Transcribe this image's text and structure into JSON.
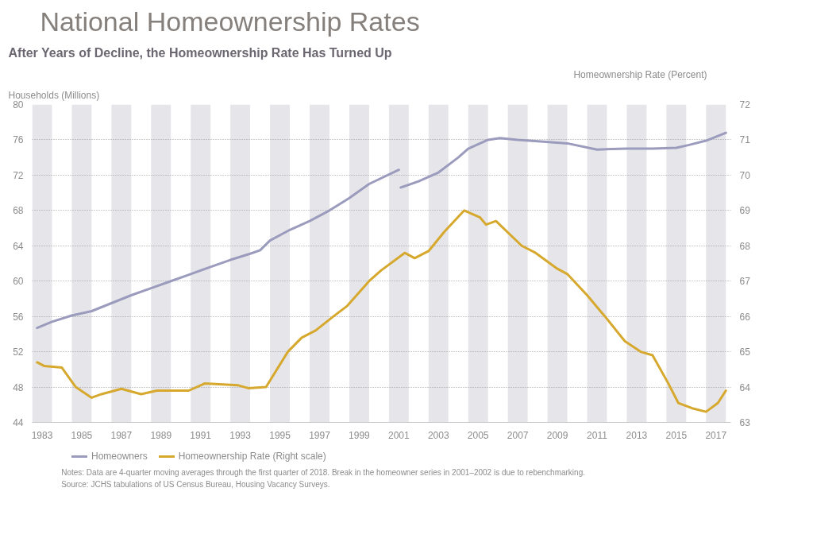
{
  "chart_data": {
    "type": "line",
    "title": "National Homeownership Rates",
    "subtitle": "After Years of Decline, the Homeownership Rate Has Turned Up",
    "ylabel": "Households (Millions)",
    "y2label": "Homeownership Rate (Percent)",
    "xlim": [
      1983,
      2018.25
    ],
    "xticks": [
      {
        "value": 1983.5,
        "label": "1983"
      },
      {
        "value": 1985.5,
        "label": "1985"
      },
      {
        "value": 1987.5,
        "label": "1987"
      },
      {
        "value": 1989.5,
        "label": "1989"
      },
      {
        "value": 1991.5,
        "label": "1991"
      },
      {
        "value": 1993.5,
        "label": "1993"
      },
      {
        "value": 1995.5,
        "label": "1995"
      },
      {
        "value": 1997.5,
        "label": "1997"
      },
      {
        "value": 1999.5,
        "label": "1999"
      },
      {
        "value": 2001.5,
        "label": "2001"
      },
      {
        "value": 2003.5,
        "label": "2003"
      },
      {
        "value": 2005.5,
        "label": "2005"
      },
      {
        "value": 2007.5,
        "label": "2007"
      },
      {
        "value": 2009.5,
        "label": "2009"
      },
      {
        "value": 2011.5,
        "label": "2011"
      },
      {
        "value": 2013.5,
        "label": "2013"
      },
      {
        "value": 2015.5,
        "label": "2015"
      },
      {
        "value": 2017.5,
        "label": "2017"
      }
    ],
    "ylim": [
      44,
      80
    ],
    "yticks": [
      44,
      48,
      52,
      56,
      60,
      64,
      68,
      72,
      76,
      80
    ],
    "y2lim": [
      63,
      72
    ],
    "y2ticks": [
      63,
      64,
      65,
      66,
      67,
      68,
      69,
      70,
      71,
      72
    ],
    "series": [
      {
        "name": "Homeowners",
        "color": "#9b9bbd",
        "x": [
          1983.25,
          1984,
          1985,
          1986,
          1987,
          1988,
          1989,
          1990,
          1991,
          1992,
          1993,
          1994,
          1994.5,
          1995,
          1996,
          1997,
          1998,
          1999,
          2000,
          2001.5,
          2001.55,
          2001.6,
          2002.5,
          2003.5,
          2004.5,
          2005,
          2006,
          2006.6,
          2007.5,
          2008.8,
          2010,
          2011.5,
          2013,
          2014.3,
          2015.5,
          2016.1,
          2017,
          2018
        ],
        "values": [
          54.7,
          55.4,
          56.1,
          56.6,
          57.5,
          58.4,
          59.2,
          60.0,
          60.8,
          61.6,
          62.4,
          63.1,
          63.5,
          64.6,
          65.8,
          66.8,
          68.0,
          69.4,
          71.0,
          72.6,
          null,
          70.6,
          71.3,
          72.3,
          74.0,
          75.0,
          76.0,
          76.2,
          76.0,
          75.8,
          75.6,
          74.9,
          75.0,
          75.0,
          75.1,
          75.4,
          75.9,
          76.8
        ]
      },
      {
        "name": "Homeownership Rate (Right scale)",
        "color": "#d6a92e",
        "axis": "y2",
        "x": [
          1983.25,
          1983.6,
          1984.5,
          1985.2,
          1986,
          1986.5,
          1987.5,
          1988.5,
          1989.3,
          1990.9,
          1991.7,
          1993.4,
          1993.9,
          1994.8,
          1995.9,
          1996.6,
          1997.3,
          1998.2,
          1998.9,
          2000,
          2000.6,
          2001.8,
          2002.3,
          2003,
          2003.8,
          2004.8,
          2005.6,
          2005.9,
          2006.4,
          2007.7,
          2008.4,
          2009.5,
          2010,
          2011,
          2011.9,
          2012.9,
          2013.7,
          2014.3,
          2015.1,
          2015.6,
          2016.3,
          2017,
          2017.6,
          2018
        ],
        "values": [
          64.7,
          64.6,
          64.55,
          64.0,
          63.7,
          63.8,
          63.95,
          63.8,
          63.9,
          63.9,
          64.1,
          64.05,
          63.97,
          64.0,
          65.0,
          65.4,
          65.6,
          66.0,
          66.3,
          67.0,
          67.3,
          67.8,
          67.65,
          67.85,
          68.4,
          69.0,
          68.8,
          68.6,
          68.7,
          68.0,
          67.8,
          67.35,
          67.2,
          66.6,
          66.0,
          65.3,
          65.0,
          64.9,
          64.1,
          63.55,
          63.4,
          63.3,
          63.55,
          63.9
        ]
      }
    ],
    "bands": [
      {
        "axis": "x",
        "from": 1983,
        "to": 1984,
        "color": "#e6e6ea"
      },
      {
        "axis": "x",
        "from": 1985,
        "to": 1986,
        "color": "#e6e6ea"
      },
      {
        "axis": "x",
        "from": 1987,
        "to": 1988,
        "color": "#e6e6ea"
      },
      {
        "axis": "x",
        "from": 1989,
        "to": 1990,
        "color": "#e6e6ea"
      },
      {
        "axis": "x",
        "from": 1991,
        "to": 1992,
        "color": "#e6e6ea"
      },
      {
        "axis": "x",
        "from": 1993,
        "to": 1994,
        "color": "#e6e6ea"
      },
      {
        "axis": "x",
        "from": 1995,
        "to": 1996,
        "color": "#e6e6ea"
      },
      {
        "axis": "x",
        "from": 1997,
        "to": 1998,
        "color": "#e6e6ea"
      },
      {
        "axis": "x",
        "from": 1999,
        "to": 2000,
        "color": "#e6e6ea"
      },
      {
        "axis": "x",
        "from": 2001,
        "to": 2002,
        "color": "#e6e6ea"
      },
      {
        "axis": "x",
        "from": 2003,
        "to": 2004,
        "color": "#e6e6ea"
      },
      {
        "axis": "x",
        "from": 2005,
        "to": 2006,
        "color": "#e6e6ea"
      },
      {
        "axis": "x",
        "from": 2007,
        "to": 2008,
        "color": "#e6e6ea"
      },
      {
        "axis": "x",
        "from": 2009,
        "to": 2010,
        "color": "#e6e6ea"
      },
      {
        "axis": "x",
        "from": 2011,
        "to": 2012,
        "color": "#e6e6ea"
      },
      {
        "axis": "x",
        "from": 2013,
        "to": 2014,
        "color": "#e6e6ea"
      },
      {
        "axis": "x",
        "from": 2015,
        "to": 2016,
        "color": "#e6e6ea"
      },
      {
        "axis": "x",
        "from": 2017,
        "to": 2018,
        "color": "#e6e6ea"
      }
    ],
    "grid": "y",
    "legend": "bottom left",
    "annotations": [
      "Notes: Data are 4-quarter moving averages through the first quarter of 2018. Break in the homeowner series in 2001–2002 is due to rebenchmarking.",
      "Source: JCHS tabulations of US Census Bureau, Housing Vacancy Surveys."
    ]
  }
}
